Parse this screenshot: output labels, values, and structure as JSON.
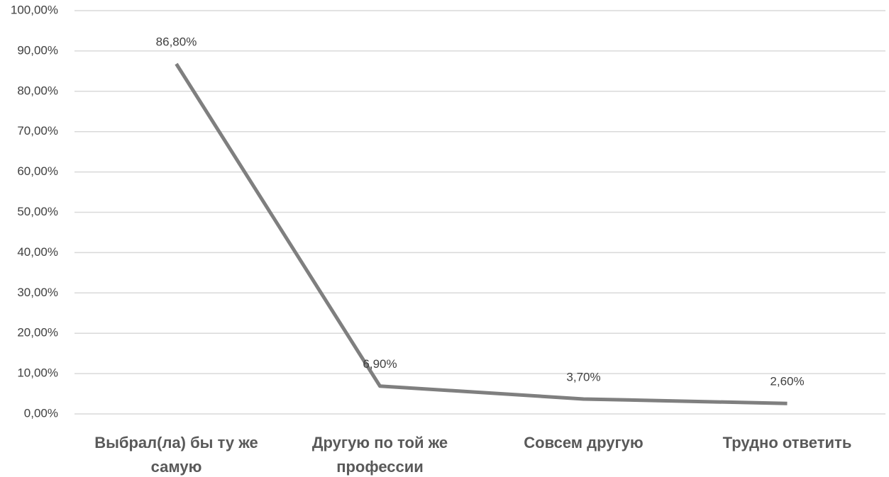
{
  "chart_data": {
    "type": "line",
    "categories": [
      "Выбрал(ла) бы ту же самую",
      "Другую по той же профессии",
      "Совсем другую",
      "Трудно ответить"
    ],
    "values": [
      86.8,
      6.9,
      3.7,
      2.6
    ],
    "value_labels": [
      "86,80%",
      "6,90%",
      "3,70%",
      "2,60%"
    ],
    "color": "#7f7f7f",
    "ylim": [
      0,
      100
    ],
    "yticks": [
      {
        "value": 0,
        "label": "0,00%"
      },
      {
        "value": 10,
        "label": "10,00%"
      },
      {
        "value": 20,
        "label": "20,00%"
      },
      {
        "value": 30,
        "label": "30,00%"
      },
      {
        "value": 40,
        "label": "40,00%"
      },
      {
        "value": 50,
        "label": "50,00%"
      },
      {
        "value": 60,
        "label": "60,00%"
      },
      {
        "value": 70,
        "label": "70,00%"
      },
      {
        "value": 80,
        "label": "80,00%"
      },
      {
        "value": 90,
        "label": "90,00%"
      },
      {
        "value": 100,
        "label": "100,00%"
      }
    ],
    "grid": true
  }
}
